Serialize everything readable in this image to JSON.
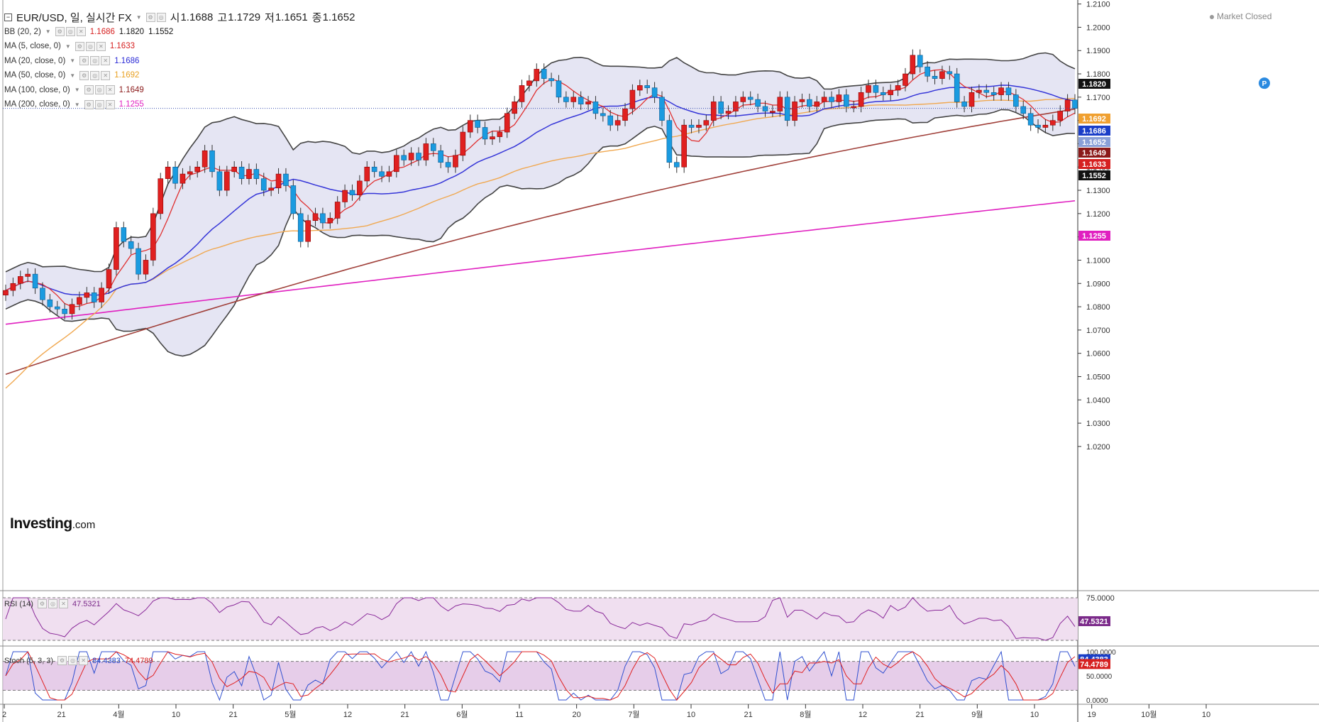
{
  "header": {
    "symbol": "EUR/USD, 일, 실시간 FX",
    "open_label": "시",
    "open": "1.1688",
    "high_label": "고",
    "high": "1.1729",
    "low_label": "저",
    "low": "1.1651",
    "close_label": "종",
    "close": "1.1652",
    "market_status": "Market Closed"
  },
  "indicators": [
    {
      "label": "BB (20, 2)",
      "values": [
        {
          "v": "1.1686",
          "color": "#d62020"
        },
        {
          "v": "1.1820",
          "color": "#111111"
        },
        {
          "v": "1.1552",
          "color": "#111111"
        }
      ]
    },
    {
      "label": "MA (5, close, 0)",
      "values": [
        {
          "v": "1.1633",
          "color": "#d62020"
        }
      ]
    },
    {
      "label": "MA (20, close, 0)",
      "values": [
        {
          "v": "1.1686",
          "color": "#2b2bd6"
        }
      ]
    },
    {
      "label": "MA (50, close, 0)",
      "values": [
        {
          "v": "1.1692",
          "color": "#e8a020"
        }
      ]
    },
    {
      "label": "MA (100, close, 0)",
      "values": [
        {
          "v": "1.1649",
          "color": "#8b1a1a"
        }
      ]
    },
    {
      "label": "MA (200, close, 0)",
      "values": [
        {
          "v": "1.1255",
          "color": "#e020c0"
        }
      ]
    }
  ],
  "logo": {
    "main": "Investing",
    "suffix": ".com"
  },
  "chart_data": {
    "type": "candlestick",
    "ylim": [
      1.016,
      1.2105
    ],
    "y_ticks": [
      "1.2100",
      "1.2000",
      "1.1900",
      "1.1800",
      "1.1700",
      "1.1600",
      "1.1500",
      "1.1400",
      "1.1300",
      "1.1200",
      "1.1100",
      "1.1000",
      "1.0900",
      "1.0800",
      "1.0700",
      "1.0600",
      "1.0500",
      "1.0400",
      "1.0300",
      "1.0200"
    ],
    "x_ticks": [
      "2",
      "21",
      "4월",
      "10",
      "21",
      "5월",
      "12",
      "21",
      "6월",
      "11",
      "20",
      "7월",
      "10",
      "21",
      "8월",
      "12",
      "21",
      "9월",
      "10",
      "19",
      "10월",
      "10"
    ],
    "candles_close": [
      1.087,
      1.09,
      1.093,
      1.094,
      1.088,
      1.083,
      1.08,
      1.079,
      1.077,
      1.081,
      1.084,
      1.086,
      1.082,
      1.088,
      1.096,
      1.114,
      1.108,
      1.105,
      1.094,
      1.1,
      1.12,
      1.135,
      1.14,
      1.133,
      1.137,
      1.138,
      1.14,
      1.147,
      1.138,
      1.13,
      1.138,
      1.14,
      1.135,
      1.139,
      1.135,
      1.13,
      1.131,
      1.137,
      1.132,
      1.12,
      1.108,
      1.117,
      1.12,
      1.116,
      1.118,
      1.125,
      1.13,
      1.128,
      1.134,
      1.14,
      1.138,
      1.136,
      1.138,
      1.145,
      1.143,
      1.146,
      1.143,
      1.15,
      1.147,
      1.142,
      1.14,
      1.145,
      1.155,
      1.16,
      1.157,
      1.152,
      1.153,
      1.155,
      1.163,
      1.168,
      1.175,
      1.177,
      1.182,
      1.178,
      1.177,
      1.17,
      1.168,
      1.17,
      1.167,
      1.168,
      1.163,
      1.162,
      1.158,
      1.16,
      1.165,
      1.173,
      1.175,
      1.174,
      1.17,
      1.16,
      1.142,
      1.14,
      1.158,
      1.157,
      1.158,
      1.16,
      1.168,
      1.163,
      1.164,
      1.168,
      1.17,
      1.169,
      1.166,
      1.164,
      1.164,
      1.17,
      1.16,
      1.168,
      1.169,
      1.166,
      1.168,
      1.17,
      1.168,
      1.171,
      1.166,
      1.166,
      1.172,
      1.175,
      1.172,
      1.171,
      1.173,
      1.175,
      1.18,
      1.188,
      1.183,
      1.179,
      1.178,
      1.181,
      1.18,
      1.168,
      1.166,
      1.172,
      1.173,
      1.172,
      1.171,
      1.174,
      1.171,
      1.166,
      1.163,
      1.158,
      1.157,
      1.158,
      1.16,
      1.164,
      1.1688,
      1.1652
    ],
    "series": [
      {
        "name": "BB (20, 2)",
        "values": [
          1.1686,
          1.182,
          1.1552
        ]
      },
      {
        "name": "MA (5, close, 0)",
        "values": [
          1.1633
        ]
      },
      {
        "name": "MA (20, close, 0)",
        "values": [
          1.1686
        ]
      },
      {
        "name": "MA (50, close, 0)",
        "values": [
          1.1692
        ]
      },
      {
        "name": "MA (100, close, 0)",
        "values": [
          1.1649
        ]
      },
      {
        "name": "MA (200, close, 0)",
        "values": [
          1.1255
        ]
      }
    ],
    "price_tags": [
      {
        "v": "1.1820",
        "bg": "#111111"
      },
      {
        "v": "1.1692",
        "bg": "#f0a030"
      },
      {
        "v": "1.1686",
        "bg": "#1a3ec8"
      },
      {
        "v": "1.1652",
        "bg": "#8aa0d8"
      },
      {
        "v": "1.1649",
        "bg": "#8b1a1a"
      },
      {
        "v": "1.1633",
        "bg": "#d62020"
      },
      {
        "v": "1.1552",
        "bg": "#111111"
      },
      {
        "v": "1.1255",
        "bg": "#e020c0"
      }
    ]
  },
  "rsi": {
    "label": "RSI (14)",
    "value": "47.5321",
    "tick": "75.0000",
    "tag": "47.5321",
    "tag_color": "#7b2a8a",
    "range": [
      25,
      75
    ]
  },
  "stoch": {
    "label": "Stoch (5, 3, 3)",
    "k": "84.4383",
    "d": "74.4789",
    "ticks": [
      "100.0000",
      "50.0000",
      "0.0000"
    ],
    "k_tag": "84.4383",
    "d_tag": "74.4789",
    "range": [
      0,
      100
    ]
  }
}
